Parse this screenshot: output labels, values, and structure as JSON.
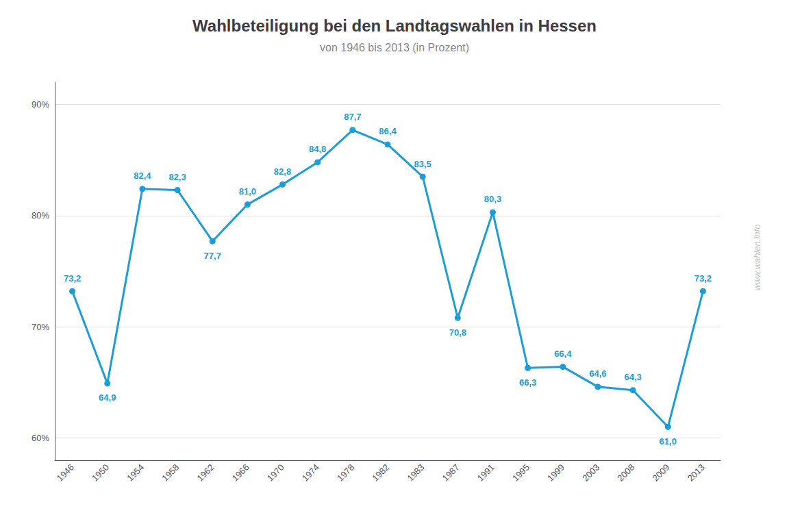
{
  "chart_data": {
    "type": "line",
    "title": "Wahlbeteiligung bei den Landtagswahlen in Hessen",
    "subtitle": "von 1946 bis 2013 (in Prozent)",
    "categories": [
      "1946",
      "1950",
      "1954",
      "1958",
      "1962",
      "1966",
      "1970",
      "1974",
      "1978",
      "1982",
      "1983",
      "1987",
      "1991",
      "1995",
      "1999",
      "2003",
      "2008",
      "2009",
      "2013"
    ],
    "values": [
      73.2,
      64.9,
      82.4,
      82.3,
      77.7,
      81.0,
      82.8,
      84.8,
      87.7,
      86.4,
      83.5,
      70.8,
      80.3,
      66.3,
      66.4,
      64.6,
      64.3,
      61.0,
      73.2
    ],
    "value_labels": [
      "73,2",
      "64,9",
      "82,4",
      "82,3",
      "77,7",
      "81,0",
      "82,8",
      "84,8",
      "87,7",
      "86,4",
      "83,5",
      "70,8",
      "80,3",
      "66,3",
      "66,4",
      "64,6",
      "64,3",
      "61,0",
      "73,2"
    ],
    "data_labels": true,
    "color": "#1b9dd9",
    "marker": "circle",
    "ylim": [
      58,
      92
    ],
    "yticks": [
      {
        "value": 60,
        "label": "60%"
      },
      {
        "value": 70,
        "label": "70%"
      },
      {
        "value": 80,
        "label": "80%"
      },
      {
        "value": 90,
        "label": "90%"
      }
    ],
    "grid": true,
    "annotations": [
      "www.wahlen.info"
    ]
  }
}
